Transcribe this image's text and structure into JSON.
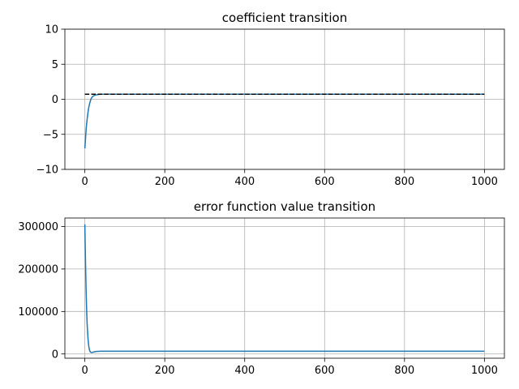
{
  "chart_data": [
    {
      "type": "line",
      "title": "coefficient transition",
      "xlabel": "",
      "ylabel": "",
      "xlim": [
        -50,
        1050
      ],
      "ylim": [
        -10,
        10
      ],
      "xticks": [
        0,
        200,
        400,
        600,
        800,
        1000
      ],
      "yticks": [
        -10,
        -5,
        0,
        5,
        10
      ],
      "grid": true,
      "series": [
        {
          "style": "solid",
          "color": "#1f77b4",
          "x": [
            0,
            1,
            2,
            3,
            4,
            6,
            8,
            10,
            12,
            15,
            18,
            22,
            26,
            30,
            35,
            40,
            50,
            60,
            80,
            100,
            200,
            400,
            600,
            800,
            1000
          ],
          "y": [
            -7.0,
            -6.2,
            -5.3,
            -4.5,
            -3.8,
            -2.7,
            -1.8,
            -1.1,
            -0.6,
            0.0,
            0.3,
            0.5,
            0.6,
            0.65,
            0.7,
            0.72,
            0.72,
            0.72,
            0.72,
            0.72,
            0.72,
            0.72,
            0.72,
            0.72,
            0.72
          ]
        },
        {
          "style": "dashed",
          "color": "#000000",
          "x": [
            0,
            1000
          ],
          "y": [
            0.72,
            0.72
          ]
        }
      ]
    },
    {
      "type": "line",
      "title": "error function value transition",
      "xlabel": "",
      "ylabel": "",
      "xlim": [
        -50,
        1050
      ],
      "ylim": [
        -10000,
        320000
      ],
      "xticks": [
        0,
        200,
        400,
        600,
        800,
        1000
      ],
      "yticks": [
        0,
        100000,
        200000,
        300000
      ],
      "grid": true,
      "series": [
        {
          "style": "solid",
          "color": "#1f77b4",
          "x": [
            0,
            1,
            2,
            3,
            4,
            5,
            6,
            8,
            10,
            12,
            14,
            16,
            18,
            20,
            25,
            30,
            40,
            50,
            100,
            200,
            400,
            600,
            800,
            1000
          ],
          "y": [
            305000,
            250000,
            200000,
            155000,
            118000,
            88000,
            65000,
            35000,
            17000,
            8000,
            4500,
            3500,
            3500,
            4000,
            5200,
            6000,
            6500,
            6500,
            6500,
            6500,
            6500,
            6500,
            6500,
            6500
          ]
        }
      ]
    }
  ]
}
